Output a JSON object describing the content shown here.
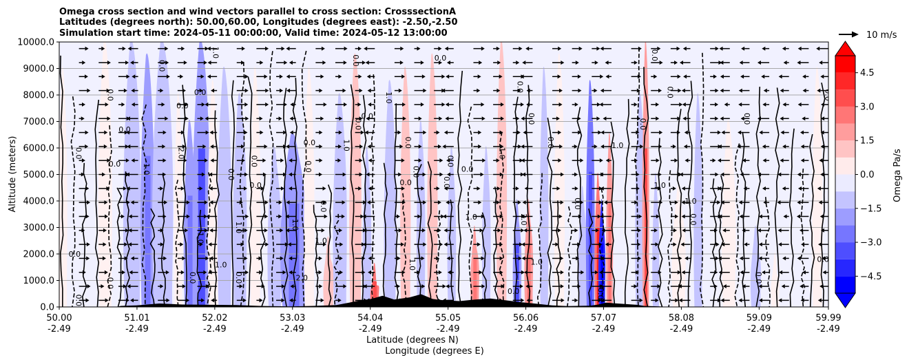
{
  "chart_data": {
    "type": "contour-cross-section",
    "title_lines": [
      "Omega cross section and wind vectors parallel to cross section: CrosssectionA",
      "Latitudes (degrees north): 50.00,60.00, Longitudes (degrees east): -2.50,-2.50",
      "Simulation start time: 2024-05-11 00:00:00, Valid time: 2024-05-12 13:00:00"
    ],
    "ylabel": "Altitude (meters)",
    "xlabel_line1": "Latitude (degrees N)",
    "xlabel_line2": "Longitude (degrees E)",
    "ylim": [
      0,
      10000
    ],
    "y_ticks": [
      0,
      1000,
      2000,
      3000,
      4000,
      5000,
      6000,
      7000,
      8000,
      9000,
      10000
    ],
    "y_tick_labels": [
      "0.0",
      "1000.0",
      "2000.0",
      "3000.0",
      "4000.0",
      "5000.0",
      "6000.0",
      "7000.0",
      "8000.0",
      "9000.0",
      "10000.0"
    ],
    "x_range": [
      50.0,
      59.99
    ],
    "x_ticks": [
      {
        "lat": "50.00",
        "lon": "-2.49"
      },
      {
        "lat": "51.01",
        "lon": "-2.49"
      },
      {
        "lat": "52.02",
        "lon": "-2.49"
      },
      {
        "lat": "53.03",
        "lon": "-2.49"
      },
      {
        "lat": "54.04",
        "lon": "-2.49"
      },
      {
        "lat": "55.05",
        "lon": "-2.49"
      },
      {
        "lat": "56.06",
        "lon": "-2.49"
      },
      {
        "lat": "57.07",
        "lon": "-2.49"
      },
      {
        "lat": "58.08",
        "lon": "-2.49"
      },
      {
        "lat": "59.09",
        "lon": "-2.49"
      },
      {
        "lat": "59.99",
        "lon": "-2.49"
      }
    ],
    "grid": "horizontal",
    "colorbar": {
      "label": "Omega Pa/s",
      "range": [
        -5.25,
        5.25
      ],
      "levels": [
        -5.25,
        -4.5,
        -3.75,
        -3.0,
        -2.25,
        -1.5,
        -0.75,
        0.0,
        0.75,
        1.5,
        2.25,
        3.0,
        3.75,
        4.5,
        5.25
      ],
      "tick_values": [
        -4.5,
        -3.0,
        -1.5,
        0.0,
        1.5,
        3.0,
        4.5
      ],
      "tick_labels": [
        "−4.5",
        "−3.0",
        "−1.5",
        "0.0",
        "1.5",
        "3.0",
        "4.5"
      ],
      "extend": "both",
      "negative_color": "#0000ff",
      "positive_color": "#ff0000"
    },
    "quiver_key": {
      "label": "10 m/s",
      "speed": 10
    },
    "contour_levels_labeled": [
      -2.0,
      -1.0,
      0.0,
      1.0,
      2.0
    ],
    "contour_labels": [
      {
        "text": "0.0",
        "lat": 50.2,
        "alt": 1900
      },
      {
        "text": "0.0",
        "lat": 50.63,
        "alt": 8000
      },
      {
        "text": "0.0",
        "lat": 50.22,
        "alt": 5800
      },
      {
        "text": "0.0",
        "lat": 50.72,
        "alt": 5300
      },
      {
        "text": "0.0",
        "lat": 50.63,
        "alt": 900
      },
      {
        "text": "0.0",
        "lat": 50.22,
        "alt": 250
      },
      {
        "text": "0.0",
        "lat": 50.85,
        "alt": 6600
      },
      {
        "text": "0.0",
        "lat": 51.3,
        "alt": 9100
      },
      {
        "text": "1.0",
        "lat": 51.1,
        "alt": 5200
      },
      {
        "text": "0.0",
        "lat": 51.6,
        "alt": 7500
      },
      {
        "text": "2.0",
        "lat": 51.55,
        "alt": 5800
      },
      {
        "text": "1.0",
        "lat": 52.0,
        "alt": 9600
      },
      {
        "text": "0.0",
        "lat": 51.83,
        "alt": 8000
      },
      {
        "text": "0.0",
        "lat": 52.2,
        "alt": 5000
      },
      {
        "text": "0.0",
        "lat": 52.5,
        "alt": 5500
      },
      {
        "text": "0.0",
        "lat": 52.55,
        "alt": 4500
      },
      {
        "text": "1.0",
        "lat": 52.3,
        "alt": 3000
      },
      {
        "text": "0.0",
        "lat": 52.3,
        "alt": 1100
      },
      {
        "text": "1.0",
        "lat": 52.1,
        "alt": 1500
      },
      {
        "text": "1.0",
        "lat": 51.8,
        "alt": 2600
      },
      {
        "text": "0.0",
        "lat": 51.7,
        "alt": 1100
      },
      {
        "text": "2.0",
        "lat": 53.15,
        "alt": 1000
      },
      {
        "text": "1.0",
        "lat": 53.03,
        "alt": 3100
      },
      {
        "text": "0.0",
        "lat": 53.2,
        "alt": 5300
      },
      {
        "text": "0.0",
        "lat": 53.25,
        "alt": 6100
      },
      {
        "text": "1.0",
        "lat": 53.7,
        "alt": 6100
      },
      {
        "text": "0.0",
        "lat": 53.4,
        "alt": 3800
      },
      {
        "text": "1.0",
        "lat": 53.4,
        "alt": 2400
      },
      {
        "text": "0.0",
        "lat": 53.85,
        "alt": 6900
      },
      {
        "text": "0.0",
        "lat": 53.82,
        "alt": 9300
      },
      {
        "text": "0.0",
        "lat": 54.0,
        "alt": 7100
      },
      {
        "text": "1.0",
        "lat": 54.25,
        "alt": 7900
      },
      {
        "text": "0.0",
        "lat": 54.5,
        "alt": 6200
      },
      {
        "text": "0.0",
        "lat": 54.95,
        "alt": 9300
      },
      {
        "text": "0.0",
        "lat": 54.6,
        "alt": 5100
      },
      {
        "text": "1.0",
        "lat": 54.55,
        "alt": 1600
      },
      {
        "text": "0.0",
        "lat": 54.5,
        "alt": 4600
      },
      {
        "text": "0.0",
        "lat": 55.05,
        "alt": 5500
      },
      {
        "text": "0.0",
        "lat": 55.0,
        "alt": 4700
      },
      {
        "text": "1.0",
        "lat": 55.35,
        "alt": 3300
      },
      {
        "text": "0.0",
        "lat": 55.95,
        "alt": 8300
      },
      {
        "text": "1.0",
        "lat": 55.72,
        "alt": 5800
      },
      {
        "text": "0.0",
        "lat": 55.3,
        "alt": 5100
      },
      {
        "text": "0.0",
        "lat": 56.1,
        "alt": 7100
      },
      {
        "text": "0.0",
        "lat": 56.35,
        "alt": 6200
      },
      {
        "text": "1.0",
        "lat": 56.2,
        "alt": 1600
      },
      {
        "text": "2.0",
        "lat": 56.0,
        "alt": 3300
      },
      {
        "text": "0.0",
        "lat": 56.7,
        "alt": 3900
      },
      {
        "text": "1.0",
        "lat": 57.25,
        "alt": 6000
      },
      {
        "text": "0.0",
        "lat": 57.7,
        "alt": 9500
      },
      {
        "text": "0.0",
        "lat": 57.55,
        "alt": 6900
      },
      {
        "text": "1.0",
        "lat": 57.8,
        "alt": 4500
      },
      {
        "text": "0.0",
        "lat": 57.9,
        "alt": 8100
      },
      {
        "text": "0.0",
        "lat": 58.2,
        "alt": 3300
      },
      {
        "text": "1.0",
        "lat": 58.2,
        "alt": 3900
      },
      {
        "text": "0.0",
        "lat": 58.9,
        "alt": 7100
      },
      {
        "text": "0.0",
        "lat": 59.05,
        "alt": 1100
      },
      {
        "text": "0.0",
        "lat": 59.92,
        "alt": 1700
      },
      {
        "text": "0.0",
        "lat": 59.95,
        "alt": 8000
      },
      {
        "text": "0.0",
        "lat": 57.0,
        "alt": 500
      },
      {
        "text": "0.0",
        "lat": 55.9,
        "alt": 500
      }
    ]
  }
}
